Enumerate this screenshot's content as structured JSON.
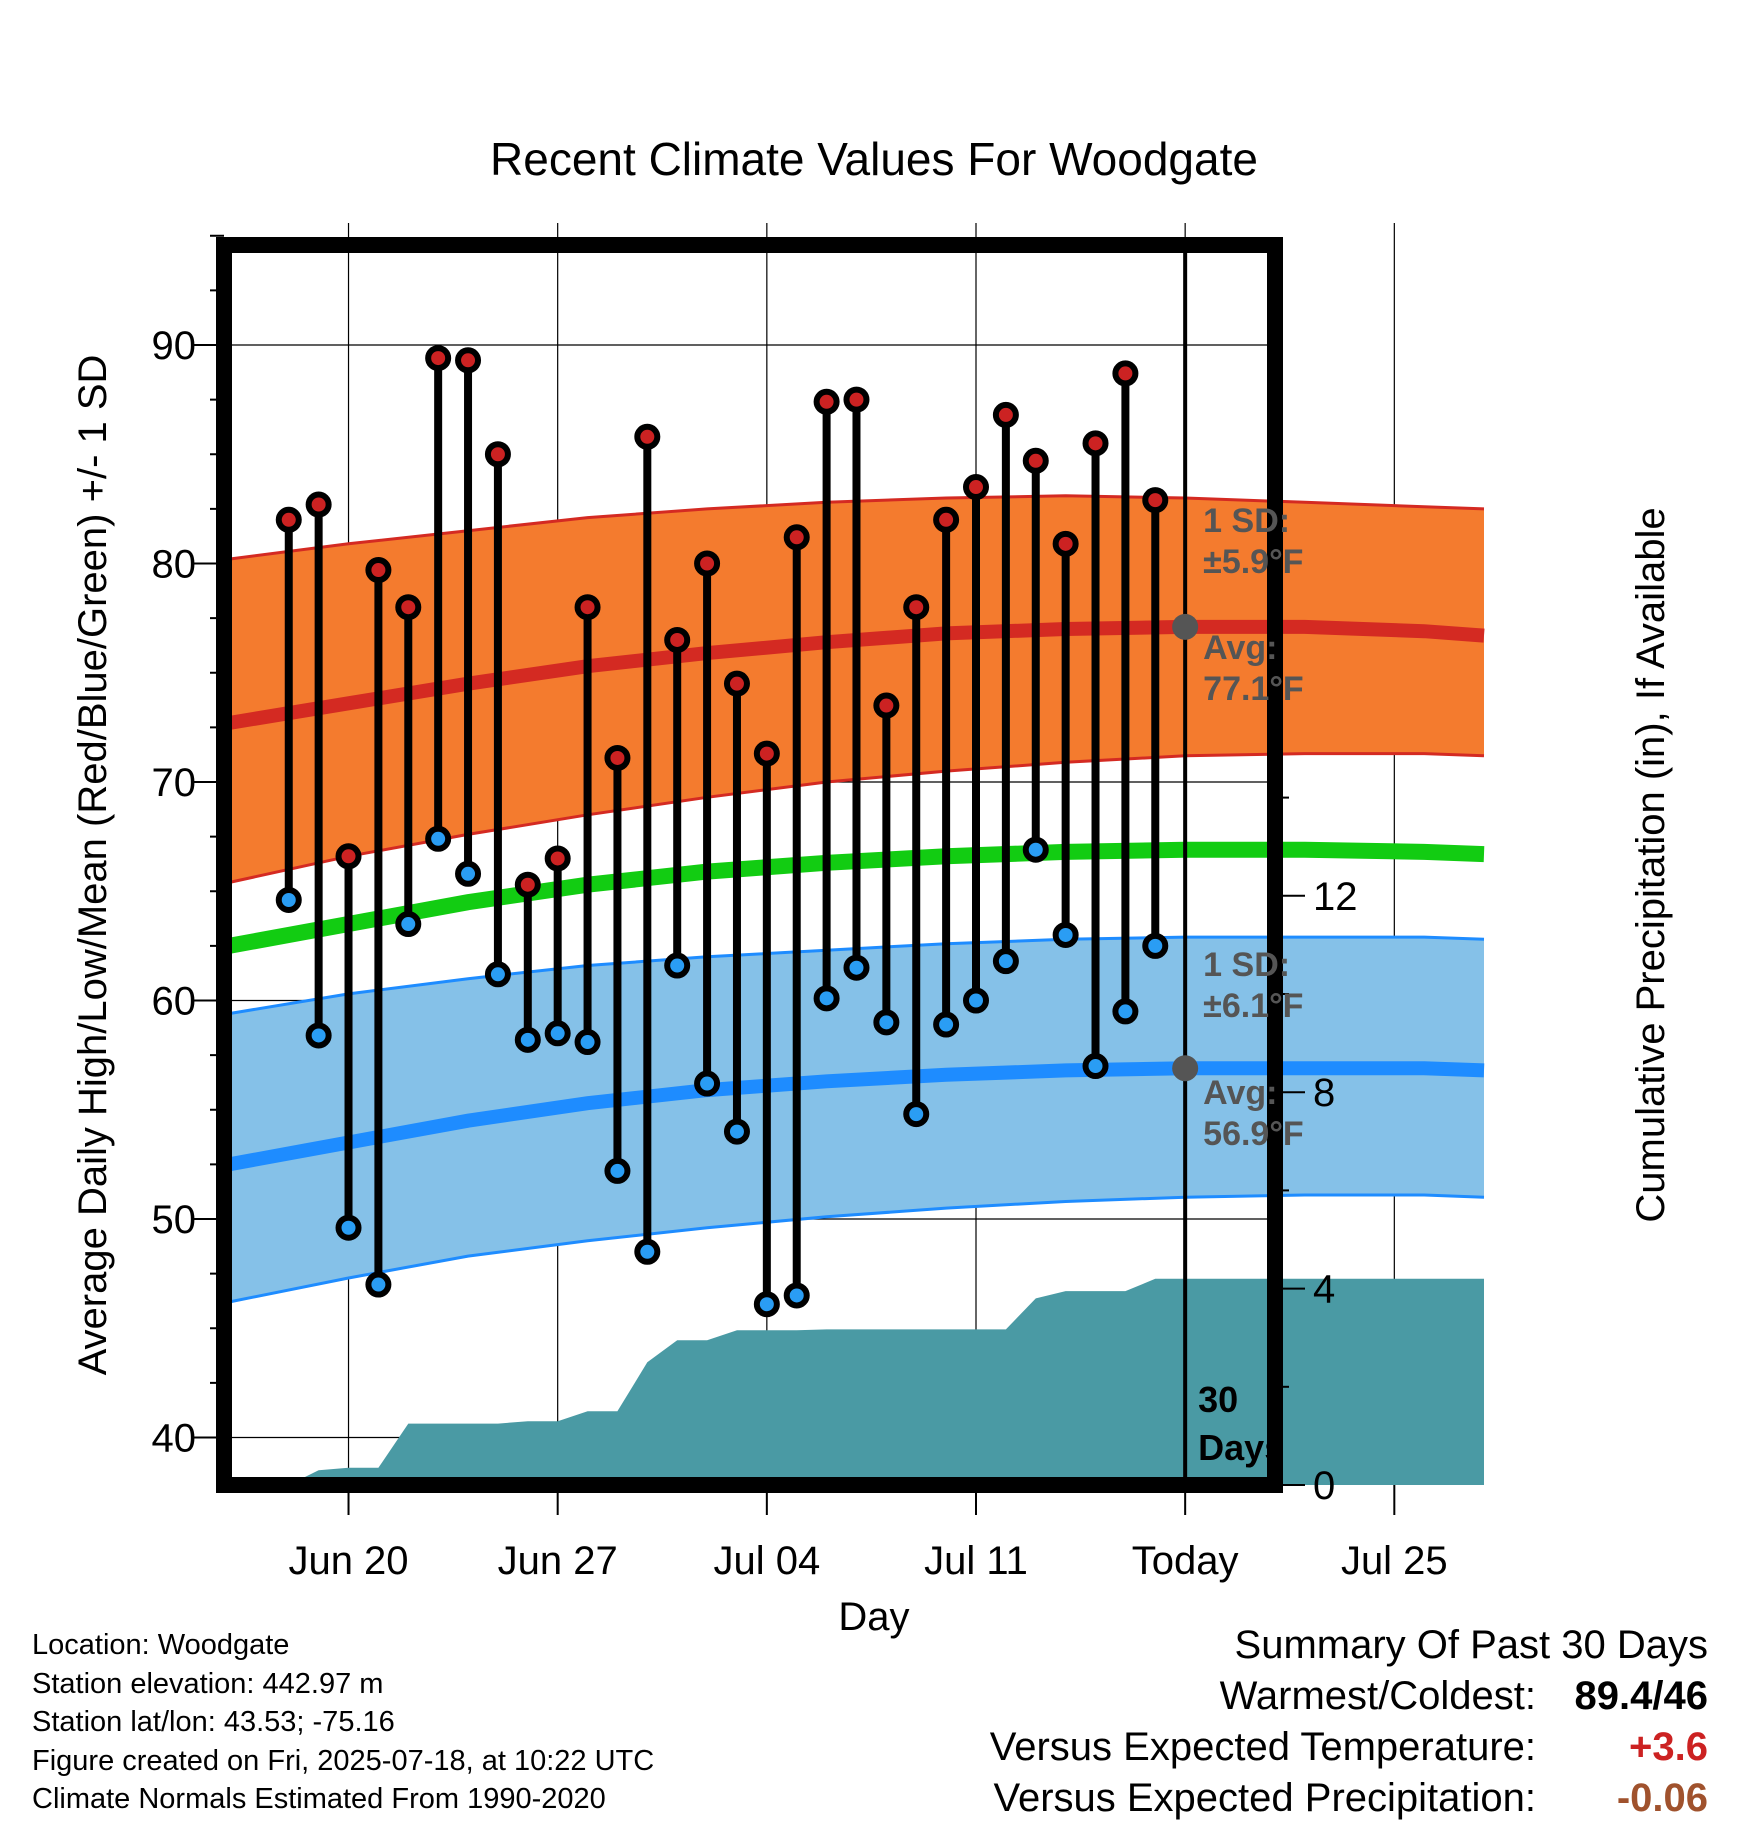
{
  "title": "Recent Climate Values For Woodgate",
  "ylabel_left": "Average Daily High/Low/Mean (Red/Blue/Green) +/- 1 SD",
  "ylabel_right": "Cumulative Precipitation (in), If Available",
  "xlabel": "Day",
  "today_label": "Today",
  "days_label": [
    "30",
    "Days"
  ],
  "high_band": {
    "sd_label": "1 SD:",
    "sd_value": "±5.9°F",
    "avg_label": "Avg:",
    "avg_value": "77.1°F"
  },
  "low_band": {
    "sd_label": "1 SD:",
    "sd_value": "±6.1°F",
    "avg_label": "Avg:",
    "avg_value": "56.9°F"
  },
  "colors": {
    "high_band": "#f47b2e",
    "high_line": "#d42a22",
    "low_band": "#85c1e8",
    "low_line": "#1e8cff",
    "mean_line": "#12cc12",
    "precip": "#4a9aa4",
    "high_marker": "#cc2222",
    "low_marker": "#2a9df4",
    "avg_marker": "#555555",
    "temp_anomaly": "#cc2222",
    "precip_anomaly": "#a0522d"
  },
  "info_lines": [
    "Location: Woodgate",
    "Station elevation: 442.97 m",
    "Station lat/lon: 43.53; -75.16",
    "Figure created on Fri, 2025-07-18, at 10:22 UTC",
    "Climate Normals Estimated From 1990-2020"
  ],
  "summary": {
    "heading": "Summary Of Past 30 Days",
    "warmest_coldest_label": "Warmest/Coldest:",
    "warmest_coldest_value": "89.4/46",
    "temp_label": "Versus Expected Temperature:",
    "temp_value": "+3.6",
    "precip_label": "Versus Expected Precipitation:",
    "precip_value": "-0.06"
  },
  "chart_data": {
    "type": "line",
    "x_tick_labels": [
      {
        "date": "2025-06-20",
        "label": "Jun 20"
      },
      {
        "date": "2025-06-27",
        "label": "Jun 27"
      },
      {
        "date": "2025-07-04",
        "label": "Jul 04"
      },
      {
        "date": "2025-07-11",
        "label": "Jul 11"
      },
      {
        "date": "2025-07-18",
        "label": "Today"
      },
      {
        "date": "2025-07-25",
        "label": "Jul 25"
      }
    ],
    "xlim": [
      "2025-06-16",
      "2025-07-28"
    ],
    "ylim_left": [
      38,
      95
    ],
    "ylim_right": [
      0,
      20
    ],
    "yticks_left": [
      40,
      50,
      60,
      70,
      80,
      90
    ],
    "yticks_right": [
      0,
      4,
      8,
      12
    ],
    "daily": {
      "dates": [
        "2025-06-18",
        "2025-06-19",
        "2025-06-20",
        "2025-06-21",
        "2025-06-22",
        "2025-06-23",
        "2025-06-24",
        "2025-06-25",
        "2025-06-26",
        "2025-06-27",
        "2025-06-28",
        "2025-06-29",
        "2025-06-30",
        "2025-07-01",
        "2025-07-02",
        "2025-07-03",
        "2025-07-04",
        "2025-07-05",
        "2025-07-06",
        "2025-07-07",
        "2025-07-08",
        "2025-07-09",
        "2025-07-10",
        "2025-07-11",
        "2025-07-12",
        "2025-07-13",
        "2025-07-14",
        "2025-07-15",
        "2025-07-16",
        "2025-07-17"
      ],
      "highs": [
        82.0,
        82.7,
        66.6,
        79.7,
        78.0,
        89.4,
        89.3,
        85.0,
        65.3,
        66.5,
        78.0,
        71.1,
        85.8,
        76.5,
        80.0,
        74.5,
        71.3,
        81.2,
        87.4,
        87.5,
        73.5,
        78.0,
        82.0,
        83.5,
        86.8,
        84.7,
        80.9,
        85.5,
        88.7,
        82.9
      ],
      "lows": [
        64.6,
        58.4,
        49.6,
        47.0,
        63.5,
        67.4,
        65.8,
        61.2,
        58.2,
        58.5,
        58.1,
        52.2,
        48.5,
        61.6,
        56.2,
        54.0,
        46.1,
        46.5,
        60.1,
        61.5,
        59.0,
        54.8,
        58.9,
        60.0,
        61.8,
        66.9,
        63.0,
        57.0,
        59.5,
        62.5
      ]
    },
    "normals": {
      "dates": [
        "2025-06-16",
        "2025-06-20",
        "2025-06-24",
        "2025-06-28",
        "2025-07-02",
        "2025-07-06",
        "2025-07-10",
        "2025-07-14",
        "2025-07-18",
        "2025-07-22",
        "2025-07-26",
        "2025-07-28"
      ],
      "high_avg": [
        72.7,
        73.6,
        74.5,
        75.3,
        75.9,
        76.4,
        76.8,
        77.0,
        77.1,
        77.1,
        76.9,
        76.7
      ],
      "high_upper": [
        80.2,
        80.9,
        81.5,
        82.1,
        82.5,
        82.8,
        83.0,
        83.1,
        83.0,
        82.8,
        82.6,
        82.5
      ],
      "high_lower": [
        65.4,
        66.6,
        67.6,
        68.5,
        69.3,
        70.0,
        70.5,
        70.9,
        71.2,
        71.3,
        71.3,
        71.2
      ],
      "mean_avg": [
        62.5,
        63.5,
        64.5,
        65.3,
        65.9,
        66.3,
        66.6,
        66.8,
        66.9,
        66.9,
        66.8,
        66.7
      ],
      "low_avg": [
        52.5,
        53.5,
        54.5,
        55.3,
        55.9,
        56.3,
        56.6,
        56.8,
        56.9,
        56.9,
        56.9,
        56.8
      ],
      "low_upper": [
        59.4,
        60.3,
        61.0,
        61.6,
        62.0,
        62.3,
        62.6,
        62.8,
        62.9,
        62.9,
        62.9,
        62.8
      ],
      "low_lower": [
        46.2,
        47.3,
        48.3,
        49.0,
        49.6,
        50.1,
        50.5,
        50.8,
        51.0,
        51.1,
        51.1,
        51.0
      ]
    },
    "today_avg_high": 77.1,
    "today_avg_low": 56.9,
    "precip": {
      "dates": [
        "2025-06-17",
        "2025-06-18",
        "2025-06-19",
        "2025-06-20",
        "2025-06-21",
        "2025-06-22",
        "2025-06-23",
        "2025-06-24",
        "2025-06-25",
        "2025-06-26",
        "2025-06-27",
        "2025-06-28",
        "2025-06-29",
        "2025-06-30",
        "2025-07-01",
        "2025-07-02",
        "2025-07-03",
        "2025-07-04",
        "2025-07-05",
        "2025-07-06",
        "2025-07-07",
        "2025-07-08",
        "2025-07-09",
        "2025-07-10",
        "2025-07-11",
        "2025-07-12",
        "2025-07-13",
        "2025-07-14",
        "2025-07-15",
        "2025-07-16",
        "2025-07-17",
        "2025-07-18",
        "2025-07-28"
      ],
      "cumulative": [
        0.0,
        0.0,
        0.3,
        0.35,
        0.35,
        1.25,
        1.25,
        1.25,
        1.25,
        1.3,
        1.3,
        1.5,
        1.5,
        2.5,
        2.95,
        2.95,
        3.15,
        3.15,
        3.15,
        3.17,
        3.17,
        3.17,
        3.17,
        3.17,
        3.17,
        3.17,
        3.8,
        3.95,
        3.95,
        3.95,
        4.2,
        4.2,
        4.2
      ]
    }
  }
}
